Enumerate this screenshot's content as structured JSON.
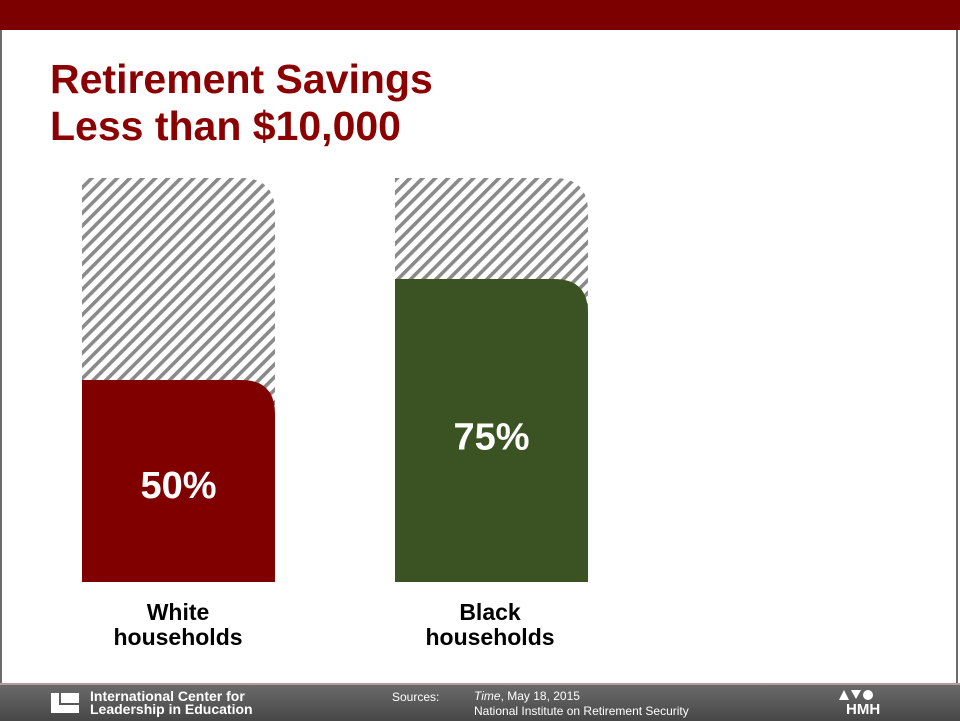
{
  "slide": {
    "title_line1": "Retirement Savings",
    "title_line2": "Less than $10,000"
  },
  "chart_data": {
    "type": "bar",
    "title": "Retirement Savings Less than $10,000",
    "categories": [
      "White\nhouseholds",
      "Black\nhouseholds"
    ],
    "values": [
      50,
      75
    ],
    "value_labels": [
      "50%",
      "75%"
    ],
    "ylim": [
      0,
      100
    ],
    "colors": [
      "#800000",
      "#3b5323"
    ],
    "background_pattern": "diagonal-hatch",
    "grid": false,
    "legend": "none"
  },
  "footer": {
    "org_line1": "International Center for",
    "org_line2": "Leadership in Education",
    "sources_label": "Sources:",
    "source1_title": "Time",
    "source1_rest": ", May 18, 2015",
    "source2": "National Institute on Retirement Security",
    "brand": "HMH",
    "colors": {
      "top_bar": "#7d0000",
      "footer": "#575757"
    }
  }
}
